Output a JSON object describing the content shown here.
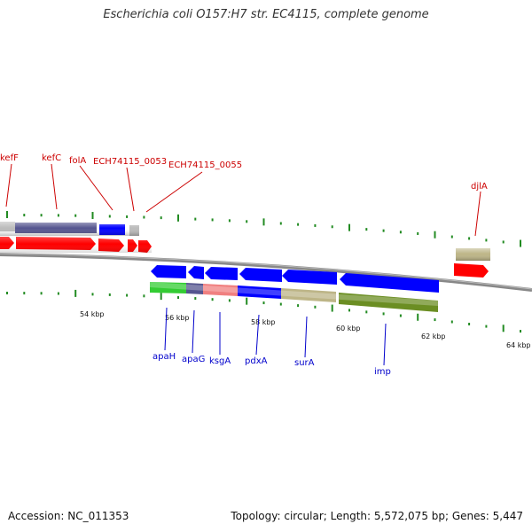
{
  "title": "Escherichia coli O157:H7 str. EC4115, complete genome",
  "footer": {
    "accession": "Accession: NC_011353",
    "stats": "Topology: circular; Length: 5,572,075 bp; Genes: 5,447"
  },
  "colors": {
    "forward_strand": "#ff0000",
    "reverse_strand": "#0000ff",
    "upper_label": "#cc0000",
    "lower_label": "#0000cc",
    "backbone": "#888888",
    "tick": "#228b22",
    "cog_purple": "#55558f",
    "cog_gray": "#bbbbbb",
    "cog_tan": "#bdb587",
    "cog_green": "#33cc33",
    "cog_pink": "#f08080",
    "cog_olive": "#6b8e23"
  },
  "kbp_labels": [
    "54 kbp",
    "56 kbp",
    "58 kbp",
    "60 kbp",
    "62 kbp",
    "64 kbp"
  ],
  "upper_genes": [
    "kefF",
    "kefC",
    "folA",
    "ECH74115_0053",
    "ECH74115_0055",
    "djlA"
  ],
  "lower_genes": [
    "apaH",
    "apaG",
    "ksgA",
    "pdxA",
    "surA",
    "imp"
  ]
}
